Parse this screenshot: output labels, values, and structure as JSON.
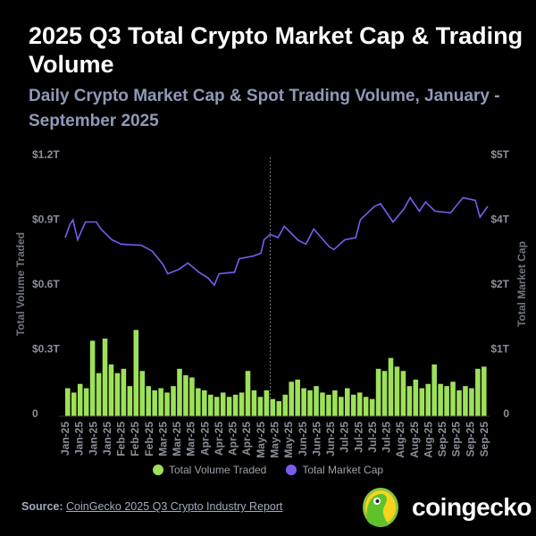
{
  "header": {
    "title": "2025 Q3 Total Crypto Market Cap & Trading Volume",
    "subtitle": "Daily Crypto Market Cap & Spot Trading Volume, January - September 2025"
  },
  "colors": {
    "volume": "#9ee05a",
    "market_cap": "#7b5cf0",
    "background": "#000000"
  },
  "chart_data": {
    "type": "bar+line",
    "title": "2025 Q3 Total Crypto Market Cap & Trading Volume",
    "subtitle": "Daily Crypto Market Cap & Spot Trading Volume, January - September 2025",
    "xlabel": "",
    "ylabel_left": "Total Volume Traded",
    "ylabel_right": "Total Market Cap",
    "left_ticks": [
      "0",
      "$0.3T",
      "$0.6T",
      "$0.9T",
      "$1.2T"
    ],
    "right_ticks": [
      "0",
      "$1T",
      "$2T",
      "$4T",
      "$5T"
    ],
    "ylim_left_trillions": [
      0,
      1.2
    ],
    "ylim_right_trillions": [
      0,
      4.8
    ],
    "x_range": [
      "2025-01-01",
      "2025-09-30"
    ],
    "x_tick_labels": [
      "Jan-25",
      "Jan-25",
      "Jan-25",
      "Jan-25",
      "Feb-25",
      "Feb-25",
      "Feb-25",
      "Mar-25",
      "Mar-25",
      "Mar-25",
      "Apr-25",
      "Apr-25",
      "Apr-25",
      "Apr-25",
      "May-25",
      "May-25",
      "May-25",
      "Jun-25",
      "Jun-25",
      "Jun-25",
      "Jul-25",
      "Jul-25",
      "Jul-25",
      "Jul-25",
      "Aug-25",
      "Aug-25",
      "Aug-25",
      "Sep-25",
      "Sep-25",
      "Sep-25",
      "Sep-25"
    ],
    "grid": false,
    "legend_placement": "bottom",
    "reference_line_date": "2025-05-13",
    "series": [
      {
        "name": "Total Volume Traded",
        "type": "bar",
        "axis": "left",
        "unit": "T USD",
        "values": [
          0.13,
          0.11,
          0.15,
          0.13,
          0.35,
          0.2,
          0.36,
          0.24,
          0.2,
          0.22,
          0.14,
          0.4,
          0.21,
          0.14,
          0.12,
          0.13,
          0.11,
          0.14,
          0.22,
          0.19,
          0.18,
          0.13,
          0.12,
          0.1,
          0.09,
          0.11,
          0.09,
          0.1,
          0.11,
          0.21,
          0.12,
          0.09,
          0.12,
          0.08,
          0.07,
          0.1,
          0.16,
          0.17,
          0.13,
          0.12,
          0.14,
          0.11,
          0.1,
          0.12,
          0.09,
          0.13,
          0.1,
          0.11,
          0.09,
          0.08,
          0.22,
          0.21,
          0.27,
          0.23,
          0.21,
          0.14,
          0.17,
          0.13,
          0.15,
          0.24,
          0.15,
          0.14,
          0.16,
          0.12,
          0.14,
          0.13,
          0.22,
          0.23
        ]
      },
      {
        "name": "Total Market Cap",
        "type": "line",
        "axis": "right",
        "unit": "T USD",
        "points": [
          [
            "2025-01-01",
            3.31
          ],
          [
            "2025-01-04",
            3.55
          ],
          [
            "2025-01-06",
            3.64
          ],
          [
            "2025-01-09",
            3.27
          ],
          [
            "2025-01-14",
            3.6
          ],
          [
            "2025-01-21",
            3.6
          ],
          [
            "2025-01-24",
            3.47
          ],
          [
            "2025-01-31",
            3.27
          ],
          [
            "2025-02-06",
            3.19
          ],
          [
            "2025-02-19",
            3.17
          ],
          [
            "2025-02-26",
            3.06
          ],
          [
            "2025-03-05",
            2.81
          ],
          [
            "2025-03-08",
            2.64
          ],
          [
            "2025-03-15",
            2.72
          ],
          [
            "2025-03-21",
            2.84
          ],
          [
            "2025-03-28",
            2.67
          ],
          [
            "2025-04-03",
            2.56
          ],
          [
            "2025-04-07",
            2.43
          ],
          [
            "2025-04-10",
            2.64
          ],
          [
            "2025-04-20",
            2.67
          ],
          [
            "2025-04-23",
            2.92
          ],
          [
            "2025-05-02",
            2.97
          ],
          [
            "2025-05-07",
            3.02
          ],
          [
            "2025-05-09",
            3.27
          ],
          [
            "2025-05-13",
            3.37
          ],
          [
            "2025-05-18",
            3.31
          ],
          [
            "2025-05-22",
            3.52
          ],
          [
            "2025-05-31",
            3.26
          ],
          [
            "2025-06-05",
            3.19
          ],
          [
            "2025-06-10",
            3.47
          ],
          [
            "2025-06-20",
            3.14
          ],
          [
            "2025-06-23",
            3.09
          ],
          [
            "2025-06-30",
            3.27
          ],
          [
            "2025-07-07",
            3.31
          ],
          [
            "2025-07-10",
            3.64
          ],
          [
            "2025-07-19",
            3.89
          ],
          [
            "2025-07-23",
            3.94
          ],
          [
            "2025-07-31",
            3.6
          ],
          [
            "2025-08-07",
            3.84
          ],
          [
            "2025-08-11",
            4.05
          ],
          [
            "2025-08-17",
            3.8
          ],
          [
            "2025-08-21",
            3.97
          ],
          [
            "2025-08-27",
            3.8
          ],
          [
            "2025-09-06",
            3.77
          ],
          [
            "2025-09-14",
            4.05
          ],
          [
            "2025-09-22",
            4.0
          ],
          [
            "2025-09-25",
            3.69
          ],
          [
            "2025-09-30",
            3.89
          ]
        ]
      }
    ]
  },
  "legend": {
    "items": [
      {
        "label": "Total Volume Traded"
      },
      {
        "label": "Total Market Cap"
      }
    ]
  },
  "footer": {
    "source_label": "Source:",
    "source_link": "CoinGecko 2025 Q3 Crypto Industry Report",
    "brand": "coingecko"
  }
}
